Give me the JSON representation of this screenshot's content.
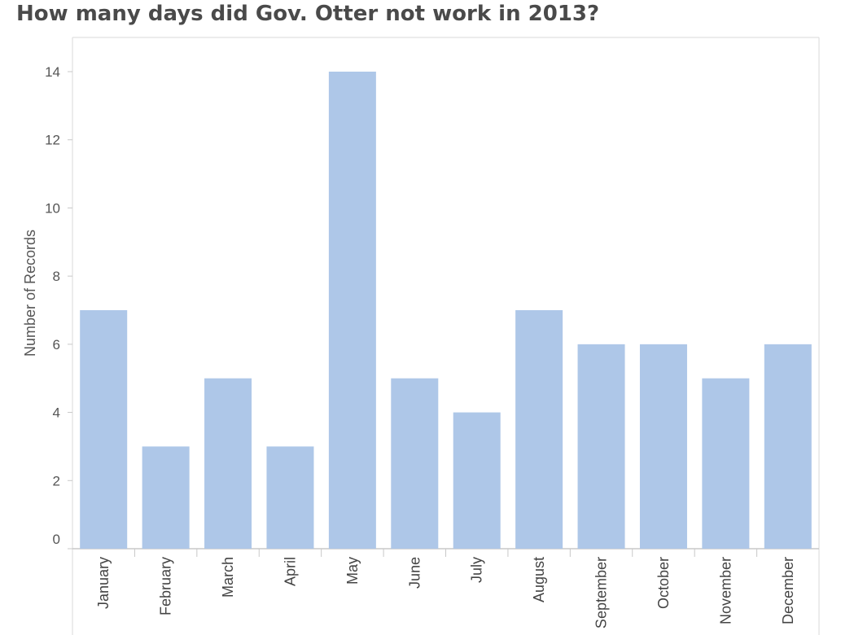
{
  "title": "How many days did Gov. Otter not work in 2013?",
  "colors": {
    "bar": "#aec7e8",
    "axis": "#c8c8c8",
    "frame": "#d9d9d9"
  },
  "chart_data": {
    "type": "bar",
    "title": "How many days did Gov. Otter not work in 2013?",
    "xlabel": "",
    "ylabel": "Number of Records",
    "categories": [
      "January",
      "February",
      "March",
      "April",
      "May",
      "June",
      "July",
      "August",
      "September",
      "October",
      "November",
      "December"
    ],
    "values": [
      7,
      3,
      5,
      3,
      14,
      5,
      4,
      7,
      6,
      6,
      5,
      6
    ],
    "ylim": [
      0,
      15
    ],
    "yticks": [
      0,
      2,
      4,
      6,
      8,
      10,
      12,
      14
    ],
    "grid": false,
    "legend": "none"
  }
}
